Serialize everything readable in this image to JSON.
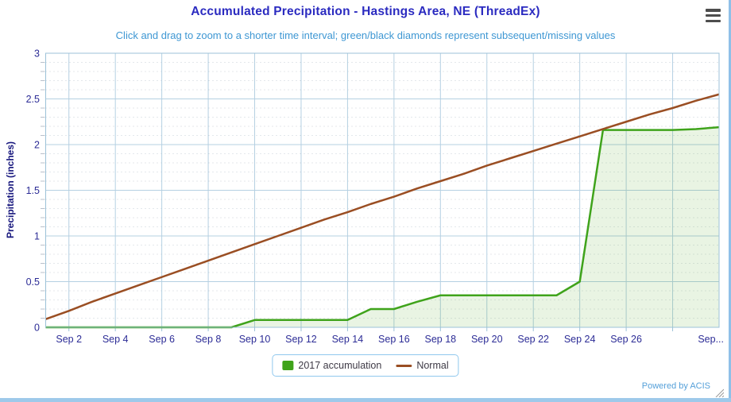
{
  "chart_data": {
    "type": "area",
    "title": "Accumulated Precipitation - Hastings Area, NE (ThreadEx)",
    "subtitle": "Click and drag to zoom to a shorter time interval; green/black diamonds represent subsequent/missing values",
    "xlabel": "",
    "ylabel": "Precipitation (inches)",
    "ylim": [
      0,
      3
    ],
    "y_tick_step": 0.5,
    "y_minor_step": 0.1,
    "grid": "on",
    "legend_position": "bottom-center",
    "x_start": "Sep 1",
    "x_end": "Sep 30",
    "x_ticks": [
      {
        "day": 2,
        "label": "Sep 2"
      },
      {
        "day": 4,
        "label": "Sep 4"
      },
      {
        "day": 6,
        "label": "Sep 6"
      },
      {
        "day": 8,
        "label": "Sep 8"
      },
      {
        "day": 10,
        "label": "Sep 10"
      },
      {
        "day": 12,
        "label": "Sep 12"
      },
      {
        "day": 14,
        "label": "Sep 14"
      },
      {
        "day": 16,
        "label": "Sep 16"
      },
      {
        "day": 18,
        "label": "Sep 18"
      },
      {
        "day": 20,
        "label": "Sep 20"
      },
      {
        "day": 22,
        "label": "Sep 22"
      },
      {
        "day": 24,
        "label": "Sep 24"
      },
      {
        "day": 26,
        "label": "Sep 26"
      },
      {
        "day": 28,
        "label": "Sep..."
      }
    ],
    "series": [
      {
        "name": "2017 accumulation",
        "type": "area",
        "color": "#3fa31b",
        "fill": "rgba(76,163,27,0.12)",
        "values": [
          0,
          0,
          0,
          0,
          0,
          0,
          0,
          0,
          0,
          0.08,
          0.08,
          0.08,
          0.08,
          0.08,
          0.2,
          0.2,
          0.28,
          0.35,
          0.35,
          0.35,
          0.35,
          0.35,
          0.35,
          0.5,
          2.16,
          2.16,
          2.16,
          2.16,
          2.17,
          2.19
        ]
      },
      {
        "name": "Normal",
        "type": "line",
        "color": "#9a4e23",
        "values": [
          0.09,
          0.18,
          0.28,
          0.37,
          0.46,
          0.55,
          0.64,
          0.73,
          0.82,
          0.91,
          1.0,
          1.09,
          1.18,
          1.26,
          1.35,
          1.43,
          1.52,
          1.6,
          1.68,
          1.77,
          1.85,
          1.93,
          2.01,
          2.09,
          2.17,
          2.25,
          2.33,
          2.4,
          2.48,
          2.55
        ]
      }
    ]
  },
  "footer": {
    "credit": "Powered by ACIS"
  },
  "icons": {
    "menu": "hamburger-menu-icon",
    "resize": "resize-grip-icon"
  },
  "colors": {
    "title_blue": "#2b2bc0",
    "subtitle_blue": "#3e97d3",
    "axis_labels": "#2c2c96",
    "y_axis_title": "#16167d",
    "grid_major": "#b5d0e2",
    "grid_minor": "#c9d0d8",
    "tick_minor": "#b9c0cb",
    "plot_border": "#9cc2d8",
    "legend_border": "#90c8ee",
    "legend_text": "#3e3a46",
    "credit_blue": "#55a0d9",
    "frame_blue": "#9ec9ea",
    "frame_right_blue": "#8fc0e8",
    "menu_icon_gray": "#4d4d4d",
    "grip_gray": "#999999"
  }
}
